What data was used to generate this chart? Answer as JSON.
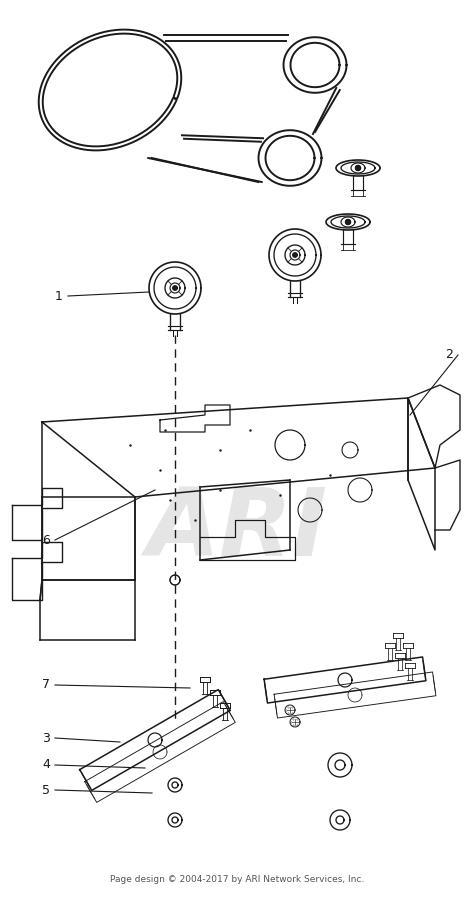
{
  "figsize": [
    4.74,
    8.98
  ],
  "dpi": 100,
  "bg_color": "#ffffff",
  "line_color": "#1a1a1a",
  "watermark_text": "ARI",
  "watermark_color": "#cccccc",
  "footer_text": "Page design © 2004-2017 by ARI Network Services, Inc.",
  "footer_fontsize": 6.5,
  "label_fontsize": 9,
  "belt_lw": 1.4,
  "deck_lw": 1.1,
  "pulley_lw": 1.2
}
